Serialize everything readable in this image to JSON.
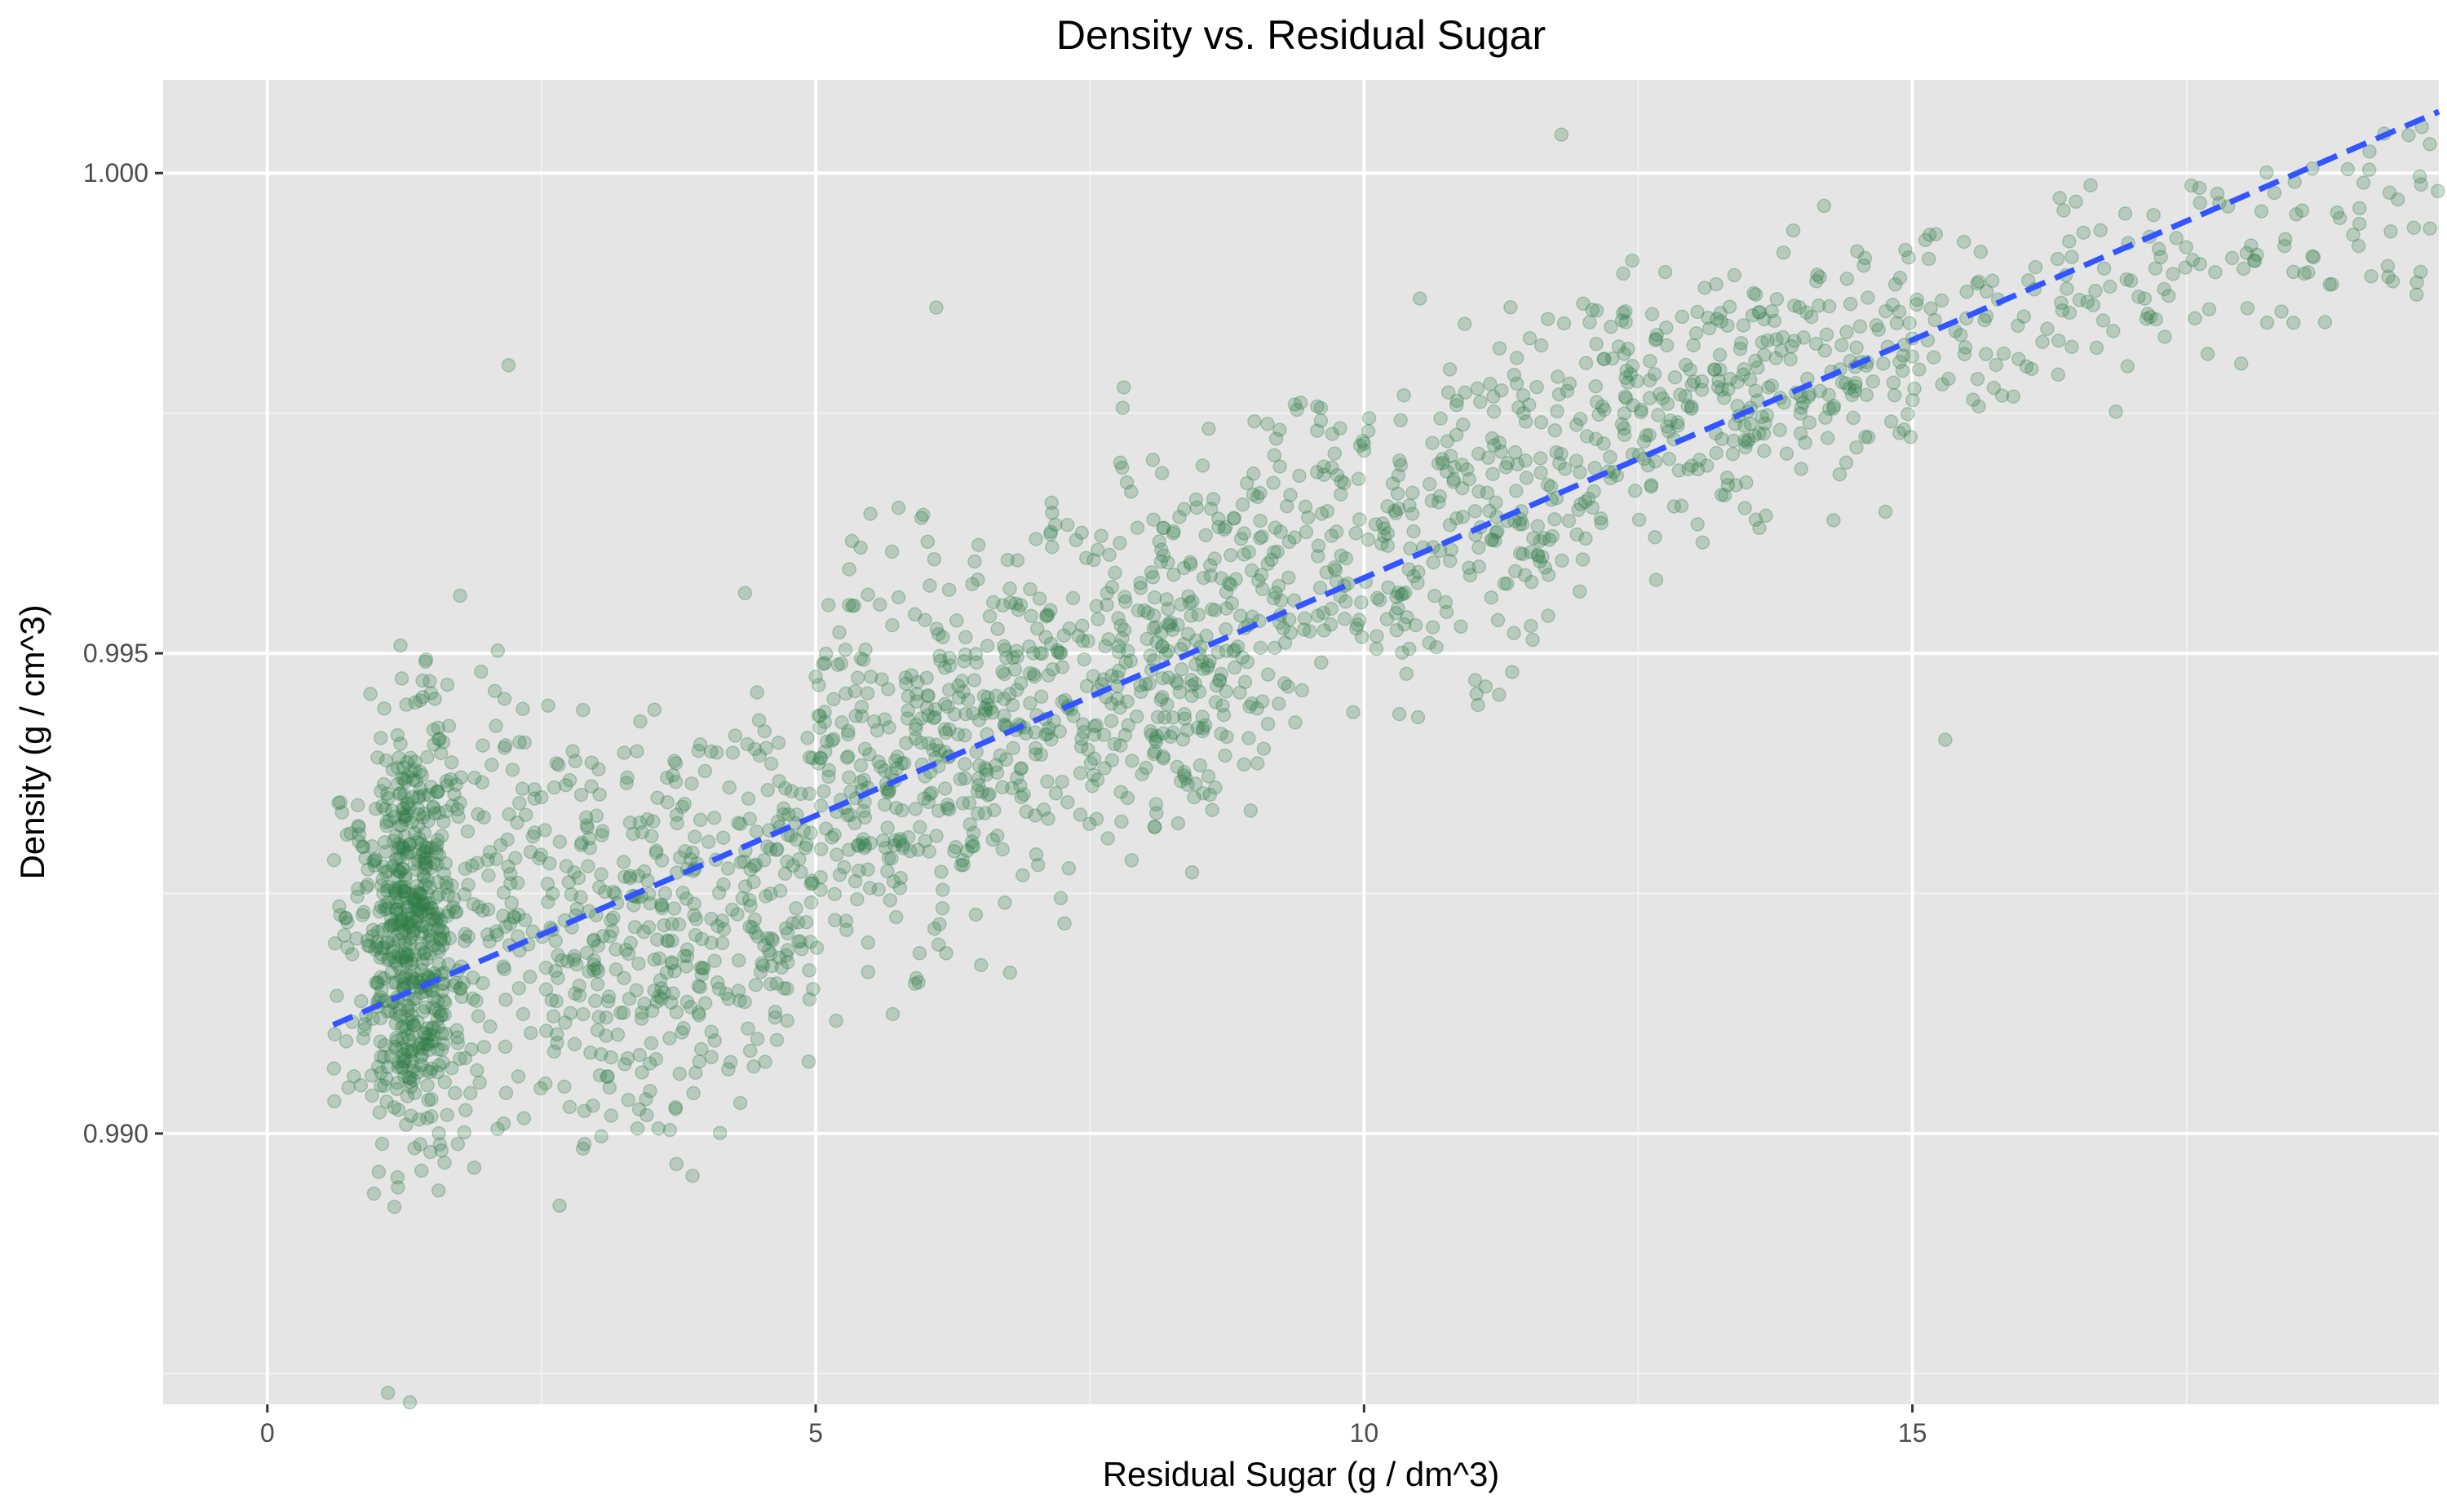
{
  "chart_data": {
    "type": "scatter",
    "title": "Density vs. Residual Sugar",
    "xlabel": "Residual Sugar (g / dm^3)",
    "ylabel": "Density (g / cm^3)",
    "xlim": [
      -0.95,
      19.8
    ],
    "ylim": [
      0.98718,
      1.00097
    ],
    "xticks": [
      0,
      5,
      10,
      15
    ],
    "xtick_labels": [
      "0",
      "5",
      "10",
      "15"
    ],
    "yticks": [
      0.99,
      0.995,
      1.0
    ],
    "ytick_labels": [
      "0.990",
      "0.995",
      "1.000"
    ],
    "grid": true,
    "background": "#e5e5e5",
    "point_color": "#2e7d46",
    "point_alpha": 0.25,
    "trend_color": "#3355ff",
    "trend_line": {
      "style": "dashed",
      "x": [
        0.6,
        19.8
      ],
      "y": [
        0.99113,
        1.00064
      ]
    },
    "point_clusters": [
      {
        "x_min": 0.6,
        "x_max": 2.5,
        "y_center": 0.9922,
        "y_spread": 0.0032,
        "count": 720
      },
      {
        "x_min": 2.5,
        "x_max": 5.0,
        "y_center": 0.9922,
        "y_spread": 0.003,
        "count": 420
      },
      {
        "x_min": 5.0,
        "x_max": 7.0,
        "y_center": 0.994,
        "y_spread": 0.003,
        "count": 360
      },
      {
        "x_min": 7.0,
        "x_max": 9.0,
        "y_center": 0.995,
        "y_spread": 0.0028,
        "count": 340
      },
      {
        "x_min": 9.0,
        "x_max": 12.0,
        "y_center": 0.9963,
        "y_spread": 0.0025,
        "count": 330
      },
      {
        "x_min": 12.0,
        "x_max": 15.0,
        "y_center": 0.9978,
        "y_spread": 0.002,
        "count": 300
      },
      {
        "x_min": 15.0,
        "x_max": 19.8,
        "y_center": 0.999,
        "y_spread": 0.0015,
        "count": 170
      }
    ],
    "notable_points": [
      {
        "x": 2.2,
        "y": 0.998
      },
      {
        "x": 6.1,
        "y": 0.9986
      },
      {
        "x": 11.8,
        "y": 1.0004
      },
      {
        "x": 15.3,
        "y": 0.9941
      },
      {
        "x": 1.3,
        "y": 0.9872
      },
      {
        "x": 1.1,
        "y": 0.9873
      }
    ]
  }
}
